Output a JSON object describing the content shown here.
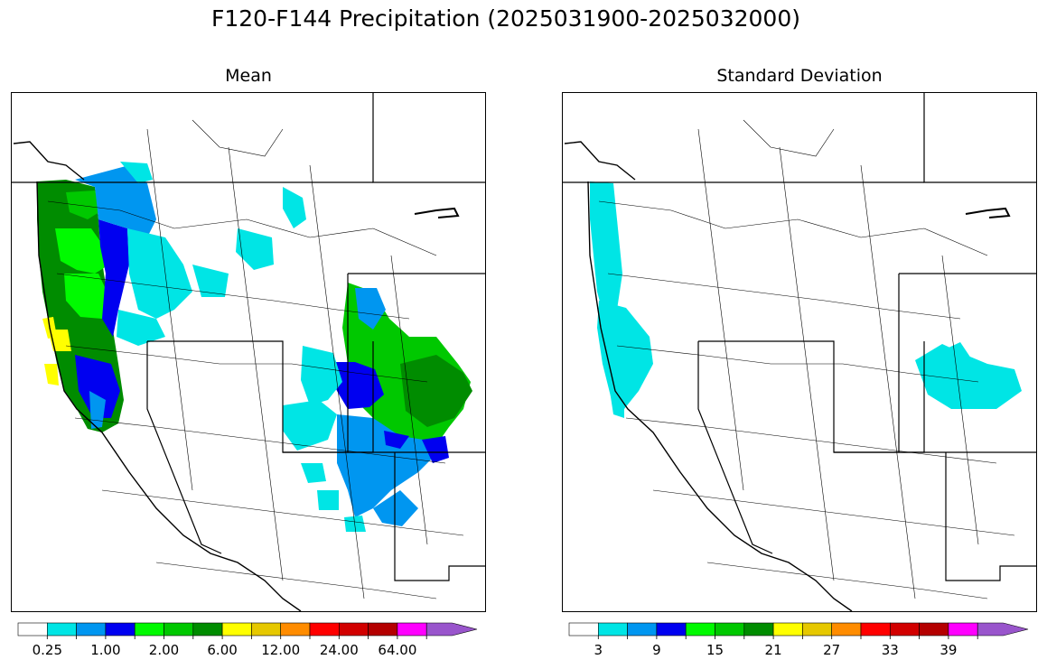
{
  "title": "F120-F144 Precipitation (2025031900-2025032000)",
  "panels": {
    "mean": {
      "title": "Mean",
      "colorbar": {
        "colors": [
          "#ffffff",
          "#00e5e5",
          "#0096f0",
          "#0000f0",
          "#00fa00",
          "#00c800",
          "#008c00",
          "#ffff00",
          "#e6c800",
          "#ff8c00",
          "#ff0000",
          "#d20000",
          "#b40000",
          "#ff00ff",
          "#9955cc"
        ],
        "tick_labels": [
          "0.25",
          "1.00",
          "2.00",
          "6.00",
          "12.00",
          "24.00",
          "64.00"
        ]
      }
    },
    "stddev": {
      "title": "Standard Deviation",
      "colorbar": {
        "colors": [
          "#ffffff",
          "#00e5e5",
          "#0096f0",
          "#0000f0",
          "#00fa00",
          "#00c800",
          "#008c00",
          "#ffff00",
          "#e6c800",
          "#ff8c00",
          "#ff0000",
          "#d20000",
          "#b40000",
          "#ff00ff",
          "#9955cc"
        ],
        "tick_labels": [
          "3",
          "9",
          "15",
          "21",
          "27",
          "33",
          "39"
        ]
      }
    }
  }
}
